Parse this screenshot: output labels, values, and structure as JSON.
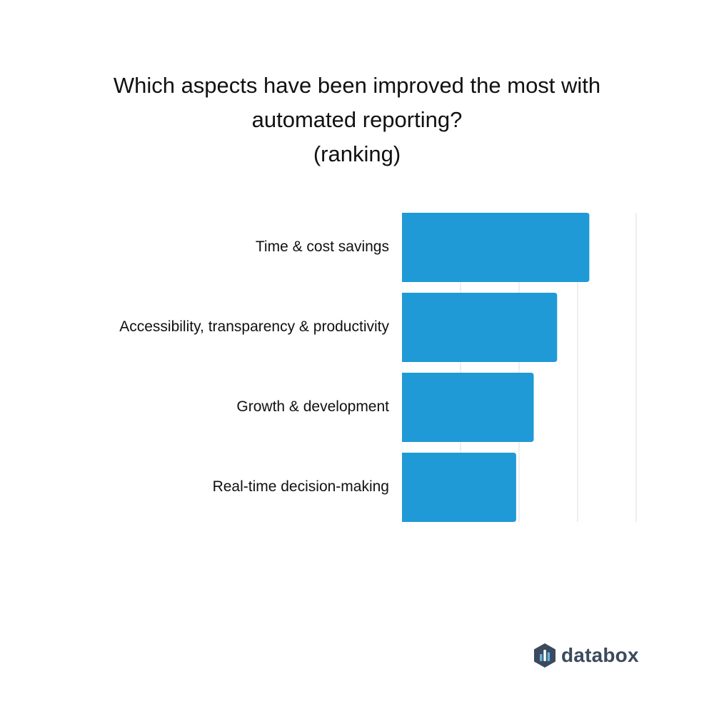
{
  "title": {
    "line1": "Which aspects have been improved the most with",
    "line2": "automated reporting?",
    "line3": "(ranking)"
  },
  "brand": {
    "name": "databox",
    "icon": "databox-logo-icon",
    "color": "#3b4a5e"
  },
  "colors": {
    "bar": "#1f9ad6",
    "grid": "#dddddd"
  },
  "chart_data": {
    "type": "bar",
    "orientation": "horizontal",
    "categories": [
      "Time & cost savings",
      "Accessibility, transparency & productivity",
      "Growth & development",
      "Real-time decision-making"
    ],
    "values": [
      3.2,
      2.65,
      2.25,
      1.95
    ],
    "xlim": [
      0,
      4
    ],
    "grid": true,
    "axis_tick_labels_shown": false
  }
}
